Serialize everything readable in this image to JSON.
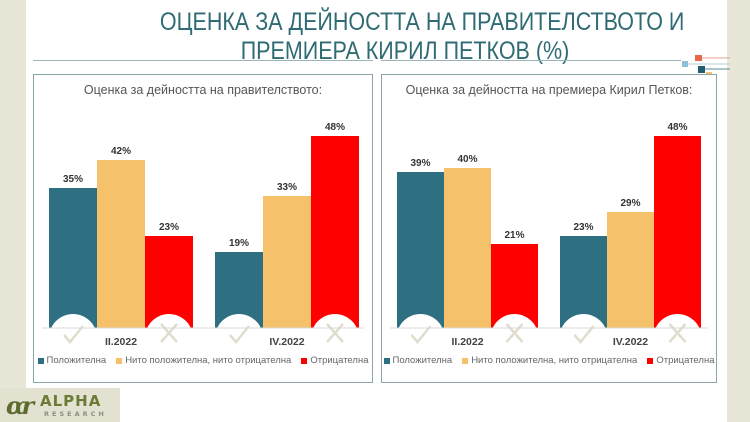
{
  "title": {
    "line1": "ОЦЕНКА ЗА ДЕЙНОСТТА НА ПРАВИТЕЛСТВОТО И",
    "line2": "ПРЕМИЕРА КИРИЛ ПЕТКОВ (%)"
  },
  "logo": {
    "mark": "ɑr",
    "name": "ALPHA",
    "sub": "RESEARCH"
  },
  "colors": {
    "positive": "#2e7081",
    "neutral": "#f5c26b",
    "negative": "#ff0000",
    "title": "#2f6b73",
    "icon": "#e0ddcc"
  },
  "chart_data": [
    {
      "type": "bar",
      "title": "Оценка за дейността на правителството:",
      "categories": [
        "II.2022",
        "IV.2022"
      ],
      "series": [
        {
          "name": "Положителна",
          "values": [
            35,
            19
          ]
        },
        {
          "name": "Нито положителна, нито отрицателна",
          "values": [
            42,
            33
          ]
        },
        {
          "name": "Отрицателна",
          "values": [
            23,
            48
          ]
        }
      ],
      "value_suffix": "%",
      "ylim": [
        0,
        50
      ],
      "legend": "bottom",
      "icons": [
        "check-icon",
        "cross-icon"
      ]
    },
    {
      "type": "bar",
      "title": "Оценка за дейността на премиера Кирил Петков:",
      "categories": [
        "II.2022",
        "IV.2022"
      ],
      "series": [
        {
          "name": "Положителна",
          "values": [
            39,
            23
          ]
        },
        {
          "name": "Нито положителна, нито отрицателна",
          "values": [
            40,
            29
          ]
        },
        {
          "name": "Отрицателна",
          "values": [
            21,
            48
          ]
        }
      ],
      "value_suffix": "%",
      "ylim": [
        0,
        50
      ],
      "legend": "bottom",
      "icons": [
        "check-icon",
        "cross-icon"
      ]
    }
  ]
}
